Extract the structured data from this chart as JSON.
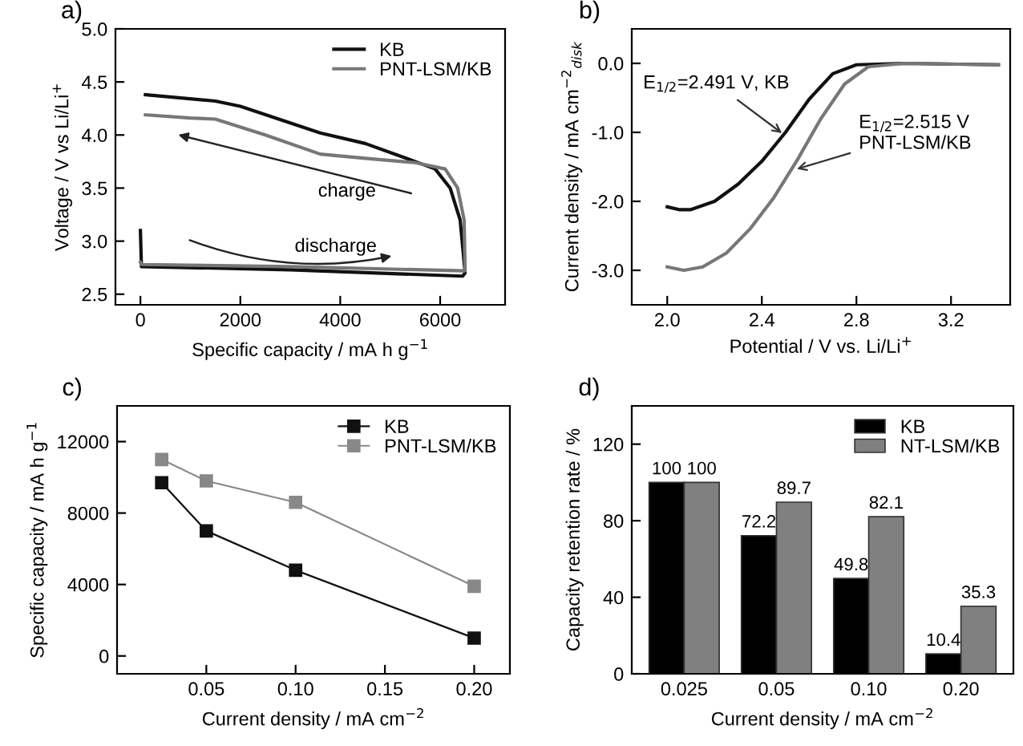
{
  "chart_data": [
    {
      "type": "line",
      "title": "a)",
      "xlabel": "Specific capacity / mA h g$^{−1}$",
      "ylabel": "Voltage / V vs Li/Li$^{+}$",
      "xlim": [
        -500,
        7300
      ],
      "xticks": [
        0,
        2000,
        4000,
        6000
      ],
      "ylim": [
        2.4,
        5.0
      ],
      "yticks": [
        {
          "value": 2.5,
          "label": "2.5"
        },
        {
          "value": 3.0,
          "label": "3.0"
        },
        {
          "value": 3.5,
          "label": "3.5"
        },
        {
          "value": 4.0,
          "label": "4.0"
        },
        {
          "value": 4.5,
          "label": "4.5"
        },
        {
          "value": 5.0,
          "label": "5.0"
        }
      ],
      "legend": "top right",
      "grid": false,
      "annotations": [
        "charge",
        "discharge"
      ],
      "series": [
        {
          "name": "KB",
          "color": "#111111",
          "x": [
            0,
            20,
            3000,
            6450,
            6500,
            6400,
            6200,
            5900,
            5500,
            4500,
            3600,
            2000,
            1500,
            100
          ],
          "values": [
            3.1,
            2.76,
            2.73,
            2.67,
            2.7,
            3.2,
            3.5,
            3.68,
            3.75,
            3.92,
            4.02,
            4.27,
            4.32,
            4.38
          ]
        },
        {
          "name": "PNT-LSM/KB",
          "color": "#777777",
          "x": [
            0,
            20,
            3000,
            6500,
            6480,
            6350,
            6100,
            5500,
            4500,
            3600,
            2500,
            1500,
            1000,
            100
          ],
          "values": [
            2.8,
            2.78,
            2.76,
            2.72,
            3.2,
            3.5,
            3.68,
            3.74,
            3.78,
            3.82,
            4.0,
            4.15,
            4.16,
            4.19
          ]
        }
      ]
    },
    {
      "type": "line",
      "title": "b)",
      "xlabel": "Potential / V vs. Li/Li$^{+}$",
      "ylabel": "Current density / mA cm$^{−2}$$_{disk}$",
      "xlim": [
        1.85,
        3.45
      ],
      "xticks": [
        {
          "value": 2.0,
          "label": "2.0"
        },
        {
          "value": 2.4,
          "label": "2.4"
        },
        {
          "value": 2.8,
          "label": "2.8"
        },
        {
          "value": 3.2,
          "label": "3.2"
        }
      ],
      "ylim": [
        -3.5,
        0.5
      ],
      "yticks": [
        {
          "value": -3.0,
          "label": "-3.0"
        },
        {
          "value": -2.0,
          "label": "-2.0"
        },
        {
          "value": -1.0,
          "label": "-1.0"
        },
        {
          "value": 0.0,
          "label": "0.0"
        }
      ],
      "grid": false,
      "annotations": [
        {
          "text": "E$_{1/2}$=2.491 V, KB",
          "x": 2.5,
          "y": -1.05
        },
        {
          "text": "E$_{1/2}$=2.515 V\nPNT-LSM/KB",
          "x": 2.53,
          "y": -1.55
        }
      ],
      "series": [
        {
          "color": "#111111",
          "x": [
            2.0,
            2.05,
            2.1,
            2.2,
            2.3,
            2.4,
            2.5,
            2.6,
            2.7,
            2.8,
            3.0,
            3.4
          ],
          "values": [
            -2.08,
            -2.12,
            -2.12,
            -2.0,
            -1.75,
            -1.42,
            -1.0,
            -0.52,
            -0.15,
            -0.02,
            0.0,
            -0.02
          ]
        },
        {
          "color": "#777777",
          "x": [
            2.0,
            2.07,
            2.15,
            2.25,
            2.35,
            2.45,
            2.55,
            2.65,
            2.75,
            2.85,
            3.0,
            3.4
          ],
          "values": [
            -2.95,
            -3.0,
            -2.95,
            -2.75,
            -2.4,
            -1.95,
            -1.4,
            -0.8,
            -0.3,
            -0.05,
            0.0,
            -0.02
          ]
        }
      ]
    },
    {
      "type": "line",
      "title": "c)",
      "xlabel": "Current density / mA cm$^{−2}$",
      "ylabel": "Specific capacity / mA h g$^{−1}$",
      "xlim": [
        0.0,
        0.22
      ],
      "xticks": [
        {
          "value": 0.05,
          "label": "0.05"
        },
        {
          "value": 0.1,
          "label": "0.10"
        },
        {
          "value": 0.15,
          "label": "0.15"
        },
        {
          "value": 0.2,
          "label": "0.20"
        }
      ],
      "ylim": [
        -1000,
        14000
      ],
      "yticks": [
        0,
        4000,
        8000,
        12000
      ],
      "marker": "square",
      "legend": "top right",
      "grid": false,
      "x": [
        0.025,
        0.05,
        0.1,
        0.2
      ],
      "series": [
        {
          "name": "KB",
          "color": "#111111",
          "values": [
            9700,
            7000,
            4800,
            1000
          ]
        },
        {
          "name": "PNT-LSM/KB",
          "color": "#888888",
          "values": [
            11000,
            9800,
            8600,
            3900
          ]
        }
      ]
    },
    {
      "type": "bar",
      "title": "d)",
      "xlabel": "Current density / mA cm$^{−2}$",
      "ylabel": "Capacity retention rate / %",
      "categories": [
        "0.025",
        "0.05",
        "0.10",
        "0.20"
      ],
      "ylim": [
        0,
        140
      ],
      "yticks": [
        0,
        40,
        80,
        120
      ],
      "data_labels": true,
      "legend": "top right",
      "grid": false,
      "series": [
        {
          "name": "KB",
          "color": "#000000",
          "values": [
            100,
            72.2,
            49.8,
            10.4
          ]
        },
        {
          "name": "NT-LSM/KB",
          "color": "#808080",
          "values": [
            100,
            89.7,
            82.1,
            35.3
          ]
        }
      ]
    }
  ]
}
